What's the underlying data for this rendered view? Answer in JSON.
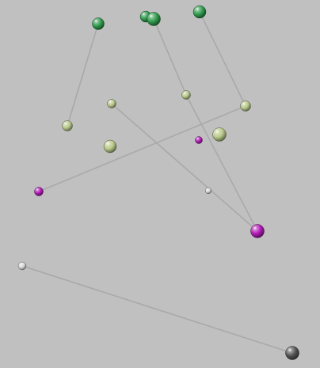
{
  "scene": {
    "background": "#c0c0c0",
    "link_color": "#a9a9a9",
    "colors": {
      "green": "#2f9a4c",
      "pale": "#b8c98a",
      "magenta": "#b01ab5",
      "white": "#d9d9d9",
      "dark": "#555555"
    },
    "balls": [
      {
        "id": "b1",
        "color": "green"
      },
      {
        "id": "b2",
        "color": "green"
      },
      {
        "id": "b3",
        "color": "green"
      },
      {
        "id": "b4",
        "color": "green"
      },
      {
        "id": "b5",
        "color": "pale"
      },
      {
        "id": "b6",
        "color": "pale"
      },
      {
        "id": "b7",
        "color": "pale"
      },
      {
        "id": "b8",
        "color": "pale"
      },
      {
        "id": "b9",
        "color": "pale"
      },
      {
        "id": "b10",
        "color": "pale"
      },
      {
        "id": "b11",
        "color": "magenta"
      },
      {
        "id": "b12",
        "color": "magenta"
      },
      {
        "id": "b13",
        "color": "magenta"
      },
      {
        "id": "b14",
        "color": "white"
      },
      {
        "id": "b15",
        "color": "white"
      },
      {
        "id": "b16",
        "color": "dark"
      }
    ],
    "links": [
      [
        "b1",
        "b5"
      ],
      [
        "b3",
        "b7"
      ],
      [
        "b7",
        "b13"
      ],
      [
        "b4",
        "b8"
      ],
      [
        "b8",
        "b12"
      ],
      [
        "b6",
        "b13"
      ],
      [
        "b15",
        "b16"
      ]
    ]
  }
}
